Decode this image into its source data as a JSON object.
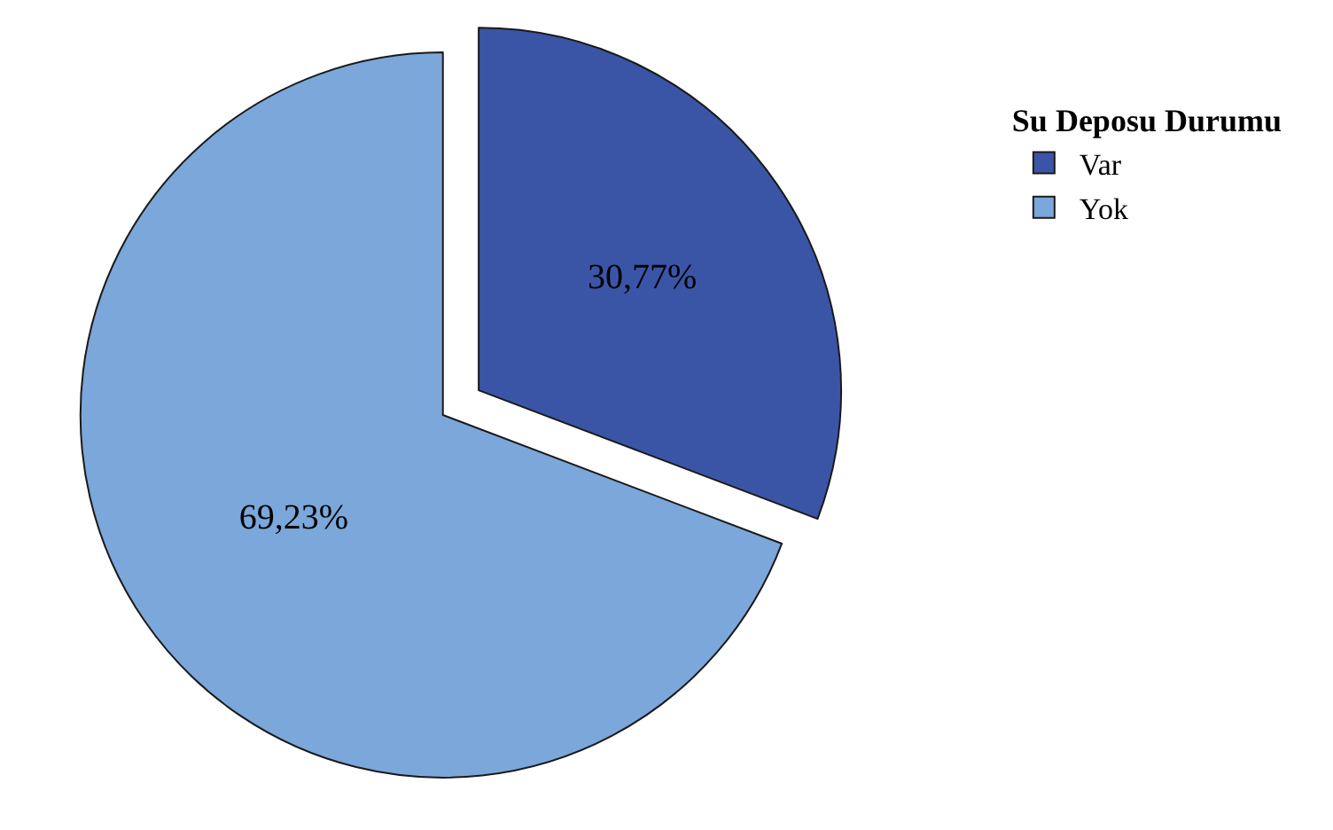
{
  "chart_data": {
    "type": "pie",
    "legend_title": "Su Deposu Durumu",
    "legend": "top right",
    "categories": [
      "Var",
      "Yok"
    ],
    "values": [
      30.77,
      69.23
    ],
    "colors": [
      "#3b55a6",
      "#7ba7da"
    ],
    "value_labels": [
      "30,77%",
      "69,23%"
    ]
  }
}
